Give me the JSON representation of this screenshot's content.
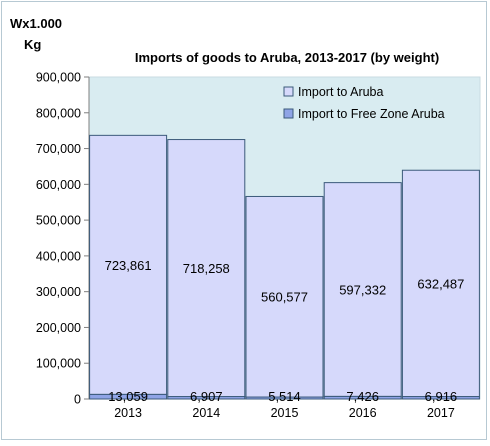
{
  "chart_data": {
    "type": "bar",
    "stacked": true,
    "title": "Imports of goods to Aruba, 2013-2017 (by weight)",
    "ylabel_line1": "Wx1.000",
    "ylabel_line2": "Kg",
    "categories": [
      "2013",
      "2014",
      "2015",
      "2016",
      "2017"
    ],
    "ylim": [
      0,
      900000
    ],
    "yticks": [
      0,
      100000,
      200000,
      300000,
      400000,
      500000,
      600000,
      700000,
      800000,
      900000
    ],
    "ytick_labels": [
      "0",
      "100,000",
      "200,000",
      "300,000",
      "400,000",
      "500,000",
      "600,000",
      "700,000",
      "800,000",
      "900,000"
    ],
    "series": [
      {
        "name": "Import to Free Zone Aruba",
        "values": [
          13059,
          6907,
          5514,
          7426,
          6916
        ],
        "labels": [
          "13,059",
          "6,907",
          "5,514",
          "7,426",
          "6,916"
        ],
        "color": "#8fa4e6"
      },
      {
        "name": "Import to Aruba",
        "values": [
          723861,
          718258,
          560577,
          597332,
          632487
        ],
        "labels": [
          "723,861",
          "718,258",
          "560,577",
          "597,332",
          "632,487"
        ],
        "color": "#d6d9fb"
      }
    ],
    "legend_order": [
      1,
      0
    ],
    "legend_position": "top-right",
    "plot_background": "#d9ecf1",
    "bar_border": "#3b5a7a",
    "grid": false
  }
}
